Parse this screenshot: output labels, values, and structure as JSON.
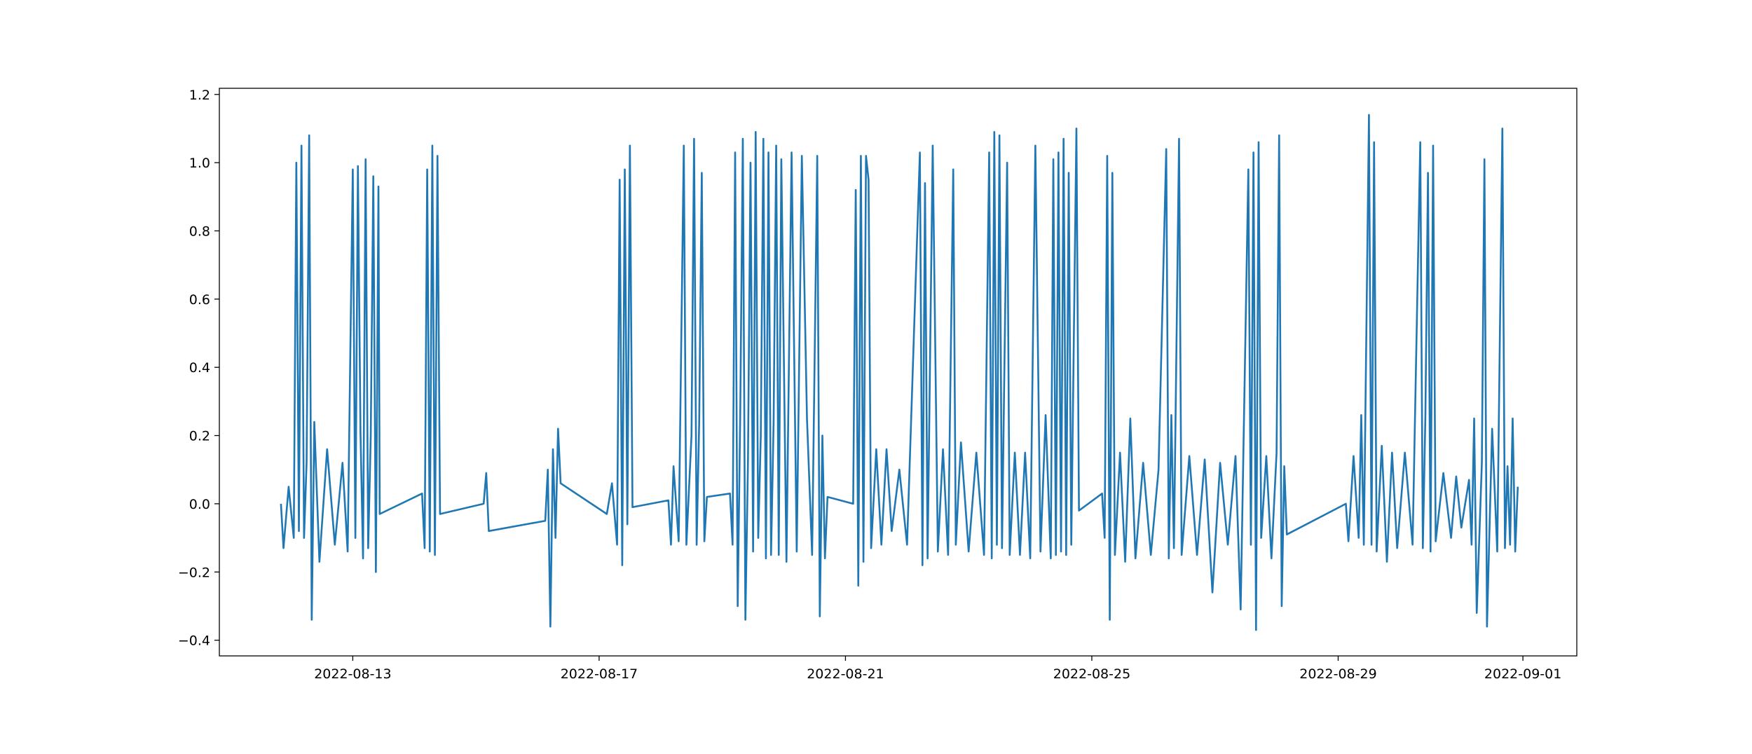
{
  "chart_data": {
    "type": "line",
    "color": "#1f77b4",
    "x": [
      "2022-08-11 20:00",
      "2022-08-11 21:00",
      "2022-08-11 23:00",
      "2022-08-12 01:00",
      "2022-08-12 02:00",
      "2022-08-12 03:00",
      "2022-08-12 04:00",
      "2022-08-12 05:00",
      "2022-08-12 06:00",
      "2022-08-12 07:00",
      "2022-08-12 08:00",
      "2022-08-12 09:00",
      "2022-08-12 11:00",
      "2022-08-12 14:00",
      "2022-08-12 17:00",
      "2022-08-12 20:00",
      "2022-08-12 22:00",
      "2022-08-13 00:00",
      "2022-08-13 01:00",
      "2022-08-13 02:00",
      "2022-08-13 03:00",
      "2022-08-13 04:00",
      "2022-08-13 05:00",
      "2022-08-13 06:00",
      "2022-08-13 07:00",
      "2022-08-13 08:00",
      "2022-08-13 09:00",
      "2022-08-13 10:00",
      "2022-08-13 10:30",
      "2022-08-14 03:00",
      "2022-08-14 04:00",
      "2022-08-14 05:00",
      "2022-08-14 06:00",
      "2022-08-14 07:00",
      "2022-08-14 08:00",
      "2022-08-14 09:00",
      "2022-08-14 10:00",
      "2022-08-15 03:00",
      "2022-08-15 04:00",
      "2022-08-15 05:00",
      "2022-08-16 03:00",
      "2022-08-16 04:00",
      "2022-08-16 05:00",
      "2022-08-16 06:00",
      "2022-08-16 07:00",
      "2022-08-16 08:00",
      "2022-08-16 09:00",
      "2022-08-17 03:00",
      "2022-08-17 05:00",
      "2022-08-17 07:00",
      "2022-08-17 08:00",
      "2022-08-17 09:00",
      "2022-08-17 10:00",
      "2022-08-17 11:00",
      "2022-08-17 12:00",
      "2022-08-17 13:00",
      "2022-08-18 03:00",
      "2022-08-18 04:00",
      "2022-08-18 05:00",
      "2022-08-18 07:00",
      "2022-08-18 09:00",
      "2022-08-18 10:00",
      "2022-08-18 12:00",
      "2022-08-18 13:00",
      "2022-08-18 14:00",
      "2022-08-18 15:00",
      "2022-08-18 16:00",
      "2022-08-18 17:00",
      "2022-08-18 18:00",
      "2022-08-19 03:00",
      "2022-08-19 04:00",
      "2022-08-19 05:00",
      "2022-08-19 06:00",
      "2022-08-19 07:00",
      "2022-08-19 08:00",
      "2022-08-19 09:00",
      "2022-08-19 10:00",
      "2022-08-19 11:00",
      "2022-08-19 12:00",
      "2022-08-19 13:00",
      "2022-08-19 14:00",
      "2022-08-19 15:00",
      "2022-08-19 16:00",
      "2022-08-19 17:00",
      "2022-08-19 18:00",
      "2022-08-19 19:00",
      "2022-08-19 20:00",
      "2022-08-19 21:00",
      "2022-08-19 22:00",
      "2022-08-19 23:00",
      "2022-08-20 01:00",
      "2022-08-20 03:00",
      "2022-08-20 05:00",
      "2022-08-20 07:00",
      "2022-08-20 09:00",
      "2022-08-20 11:00",
      "2022-08-20 13:00",
      "2022-08-20 14:00",
      "2022-08-20 15:00",
      "2022-08-20 16:00",
      "2022-08-20 17:00",
      "2022-08-21 03:00",
      "2022-08-21 04:00",
      "2022-08-21 05:00",
      "2022-08-21 06:00",
      "2022-08-21 07:00",
      "2022-08-21 08:00",
      "2022-08-21 09:00",
      "2022-08-21 10:00",
      "2022-08-21 12:00",
      "2022-08-21 14:00",
      "2022-08-21 16:00",
      "2022-08-21 18:00",
      "2022-08-21 21:00",
      "2022-08-22 00:00",
      "2022-08-22 05:00",
      "2022-08-22 06:00",
      "2022-08-22 07:00",
      "2022-08-22 08:00",
      "2022-08-22 10:00",
      "2022-08-22 12:00",
      "2022-08-22 14:00",
      "2022-08-22 16:00",
      "2022-08-22 18:00",
      "2022-08-22 19:00",
      "2022-08-22 21:00",
      "2022-08-23 00:00",
      "2022-08-23 03:00",
      "2022-08-23 06:00",
      "2022-08-23 08:00",
      "2022-08-23 09:00",
      "2022-08-23 10:00",
      "2022-08-23 11:00",
      "2022-08-23 12:00",
      "2022-08-23 13:00",
      "2022-08-23 15:00",
      "2022-08-23 16:00",
      "2022-08-23 18:00",
      "2022-08-23 20:00",
      "2022-08-23 22:00",
      "2022-08-24 00:00",
      "2022-08-24 02:00",
      "2022-08-24 04:00",
      "2022-08-24 06:00",
      "2022-08-24 08:00",
      "2022-08-24 09:00",
      "2022-08-24 10:00",
      "2022-08-24 11:00",
      "2022-08-24 12:00",
      "2022-08-24 13:00",
      "2022-08-24 14:00",
      "2022-08-24 15:00",
      "2022-08-24 16:00",
      "2022-08-24 18:00",
      "2022-08-24 19:00",
      "2022-08-25 04:00",
      "2022-08-25 05:00",
      "2022-08-25 06:00",
      "2022-08-25 07:00",
      "2022-08-25 08:00",
      "2022-08-25 09:00",
      "2022-08-25 11:00",
      "2022-08-25 13:00",
      "2022-08-25 15:00",
      "2022-08-25 17:00",
      "2022-08-25 20:00",
      "2022-08-25 23:00",
      "2022-08-26 02:00",
      "2022-08-26 05:00",
      "2022-08-26 06:00",
      "2022-08-26 07:00",
      "2022-08-26 08:00",
      "2022-08-26 10:00",
      "2022-08-26 11:00",
      "2022-08-26 14:00",
      "2022-08-26 17:00",
      "2022-08-26 20:00",
      "2022-08-26 23:00",
      "2022-08-27 02:00",
      "2022-08-27 05:00",
      "2022-08-27 08:00",
      "2022-08-27 10:00",
      "2022-08-27 13:00",
      "2022-08-27 14:00",
      "2022-08-27 15:00",
      "2022-08-27 16:00",
      "2022-08-27 17:00",
      "2022-08-27 18:00",
      "2022-08-27 20:00",
      "2022-08-27 22:00",
      "2022-08-28 00:00",
      "2022-08-28 01:00",
      "2022-08-28 02:00",
      "2022-08-28 03:00",
      "2022-08-28 04:00",
      "2022-08-29 03:00",
      "2022-08-29 04:00",
      "2022-08-29 06:00",
      "2022-08-29 08:00",
      "2022-08-29 09:00",
      "2022-08-29 10:00",
      "2022-08-29 12:00",
      "2022-08-29 13:00",
      "2022-08-29 14:00",
      "2022-08-29 15:00",
      "2022-08-29 17:00",
      "2022-08-29 19:00",
      "2022-08-29 21:00",
      "2022-08-29 23:00",
      "2022-08-30 02:00",
      "2022-08-30 05:00",
      "2022-08-30 08:00",
      "2022-08-30 09:00",
      "2022-08-30 10:00",
      "2022-08-30 11:00",
      "2022-08-30 12:00",
      "2022-08-30 13:00",
      "2022-08-30 14:00",
      "2022-08-30 17:00",
      "2022-08-30 20:00",
      "2022-08-30 22:00",
      "2022-08-31 00:00",
      "2022-08-31 03:00",
      "2022-08-31 04:00",
      "2022-08-31 05:00",
      "2022-08-31 06:00",
      "2022-08-31 08:00",
      "2022-08-31 09:00",
      "2022-08-31 10:00",
      "2022-08-31 12:00",
      "2022-08-31 14:00",
      "2022-08-31 16:00",
      "2022-08-31 17:00",
      "2022-08-31 18:00",
      "2022-08-31 19:00",
      "2022-08-31 20:00",
      "2022-08-31 21:00",
      "2022-08-31 22:00"
    ],
    "values": [
      0.0,
      -0.13,
      0.05,
      -0.1,
      1.0,
      -0.08,
      1.05,
      -0.1,
      0.12,
      1.08,
      -0.34,
      0.24,
      -0.17,
      0.16,
      -0.12,
      0.12,
      -0.14,
      0.98,
      -0.1,
      0.99,
      0.21,
      -0.16,
      1.01,
      -0.13,
      0.2,
      0.96,
      -0.2,
      0.93,
      -0.03,
      0.03,
      -0.13,
      0.98,
      -0.14,
      1.05,
      -0.15,
      1.02,
      -0.03,
      0.0,
      0.09,
      -0.08,
      -0.05,
      0.1,
      -0.36,
      0.16,
      -0.1,
      0.22,
      0.06,
      -0.03,
      0.06,
      -0.12,
      0.95,
      -0.18,
      0.98,
      -0.06,
      1.05,
      -0.01,
      0.01,
      -0.12,
      0.11,
      -0.11,
      1.05,
      -0.12,
      0.2,
      1.07,
      -0.12,
      0.24,
      0.97,
      -0.11,
      0.02,
      0.03,
      -0.12,
      1.03,
      -0.3,
      0.27,
      1.07,
      -0.34,
      0.12,
      1.0,
      -0.14,
      1.09,
      -0.1,
      0.2,
      1.07,
      -0.16,
      1.03,
      -0.15,
      0.24,
      1.05,
      -0.15,
      1.01,
      -0.17,
      1.03,
      -0.14,
      1.02,
      0.25,
      -0.15,
      1.02,
      -0.33,
      0.2,
      -0.16,
      0.02,
      0.0,
      0.92,
      -0.24,
      1.02,
      -0.17,
      1.02,
      0.95,
      -0.13,
      0.16,
      -0.12,
      0.16,
      -0.08,
      0.1,
      -0.12,
      1.03,
      -0.18,
      0.94,
      -0.16,
      1.05,
      -0.14,
      0.16,
      -0.15,
      0.98,
      -0.12,
      0.18,
      -0.14,
      0.15,
      -0.15,
      1.03,
      -0.16,
      1.09,
      -0.12,
      1.08,
      -0.13,
      1.0,
      -0.15,
      0.15,
      -0.15,
      0.15,
      -0.16,
      1.05,
      -0.14,
      0.26,
      -0.16,
      1.01,
      -0.15,
      1.03,
      -0.14,
      1.07,
      -0.15,
      0.97,
      -0.12,
      1.1,
      -0.02,
      0.03,
      -0.1,
      1.02,
      -0.34,
      0.97,
      -0.15,
      0.15,
      -0.17,
      0.25,
      -0.16,
      0.12,
      -0.15,
      0.1,
      1.04,
      -0.16,
      0.26,
      -0.13,
      1.07,
      -0.15,
      0.14,
      -0.15,
      0.13,
      -0.26,
      0.12,
      -0.12,
      0.14,
      -0.31,
      0.98,
      -0.12,
      1.03,
      -0.37,
      1.06,
      -0.1,
      0.14,
      -0.16,
      0.15,
      1.08,
      -0.3,
      0.11,
      -0.09,
      0.0,
      -0.11,
      0.14,
      -0.1,
      0.26,
      -0.12,
      1.14,
      -0.12,
      1.06,
      -0.14,
      0.17,
      -0.17,
      0.15,
      -0.13,
      0.15,
      -0.12,
      1.06,
      -0.13,
      0.26,
      0.97,
      -0.14,
      1.05,
      -0.11,
      0.09,
      -0.1,
      0.08,
      -0.07,
      0.07,
      -0.12,
      0.25,
      -0.32,
      0.12,
      1.01,
      -0.36,
      0.22,
      -0.14,
      1.1,
      -0.13,
      0.11,
      -0.12,
      0.25,
      -0.14,
      0.05
    ],
    "xlim": [
      "2022-08-10 20:00",
      "2022-09-01 21:00"
    ],
    "ylim": [
      -0.446,
      1.218
    ],
    "xticks": [
      "2022-08-13",
      "2022-08-17",
      "2022-08-21",
      "2022-08-25",
      "2022-08-29",
      "2022-09-01"
    ],
    "yticks": [
      {
        "value": -0.4,
        "label": "−0.4"
      },
      {
        "value": -0.2,
        "label": "−0.2"
      },
      {
        "value": 0.0,
        "label": "0.0"
      },
      {
        "value": 0.2,
        "label": "0.2"
      },
      {
        "value": 0.4,
        "label": "0.4"
      },
      {
        "value": 0.6,
        "label": "0.6"
      },
      {
        "value": 0.8,
        "label": "0.8"
      },
      {
        "value": 1.0,
        "label": "1.0"
      },
      {
        "value": 1.2,
        "label": "1.2"
      }
    ]
  }
}
